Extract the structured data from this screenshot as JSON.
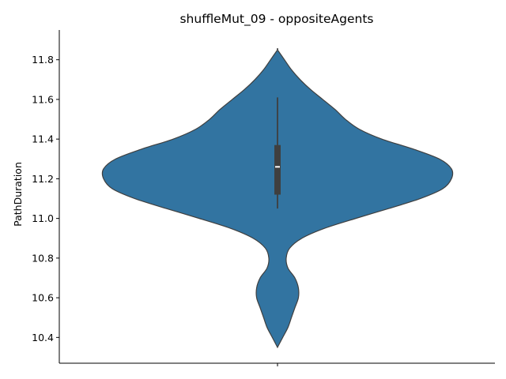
{
  "chart_data": {
    "type": "violin",
    "title": "shuffleMut_09 - oppositeAgents",
    "xlabel": "",
    "ylabel": "PathDuration",
    "ylim": [
      10.27,
      11.95
    ],
    "yticks": [
      10.4,
      10.6,
      10.8,
      11.0,
      11.2,
      11.4,
      11.6,
      11.8
    ],
    "ytick_labels": [
      "10.4",
      "10.6",
      "10.8",
      "11.0",
      "11.2",
      "11.4",
      "11.6",
      "11.8"
    ],
    "categories": [
      ""
    ],
    "color": "#3274a1",
    "edge_color": "#3f3f3f",
    "box": {
      "whisker_low": 11.05,
      "q1": 11.12,
      "median": 11.26,
      "q3": 11.37,
      "whisker_high": 11.61
    },
    "density_profile": [
      {
        "y": 10.35,
        "width": 0.0
      },
      {
        "y": 10.4,
        "width": 0.03
      },
      {
        "y": 10.45,
        "width": 0.06
      },
      {
        "y": 10.5,
        "width": 0.08
      },
      {
        "y": 10.55,
        "width": 0.1
      },
      {
        "y": 10.6,
        "width": 0.12
      },
      {
        "y": 10.65,
        "width": 0.12
      },
      {
        "y": 10.7,
        "width": 0.1
      },
      {
        "y": 10.75,
        "width": 0.06
      },
      {
        "y": 10.8,
        "width": 0.05
      },
      {
        "y": 10.85,
        "width": 0.07
      },
      {
        "y": 10.9,
        "width": 0.14
      },
      {
        "y": 10.95,
        "width": 0.27
      },
      {
        "y": 11.0,
        "width": 0.45
      },
      {
        "y": 11.05,
        "width": 0.64
      },
      {
        "y": 11.1,
        "width": 0.82
      },
      {
        "y": 11.15,
        "width": 0.95
      },
      {
        "y": 11.2,
        "width": 1.0
      },
      {
        "y": 11.25,
        "width": 1.0
      },
      {
        "y": 11.3,
        "width": 0.93
      },
      {
        "y": 11.35,
        "width": 0.78
      },
      {
        "y": 11.4,
        "width": 0.6
      },
      {
        "y": 11.45,
        "width": 0.47
      },
      {
        "y": 11.5,
        "width": 0.39
      },
      {
        "y": 11.55,
        "width": 0.33
      },
      {
        "y": 11.6,
        "width": 0.26
      },
      {
        "y": 11.65,
        "width": 0.19
      },
      {
        "y": 11.7,
        "width": 0.13
      },
      {
        "y": 11.75,
        "width": 0.08
      },
      {
        "y": 11.8,
        "width": 0.04
      },
      {
        "y": 11.85,
        "width": 0.0
      }
    ]
  }
}
